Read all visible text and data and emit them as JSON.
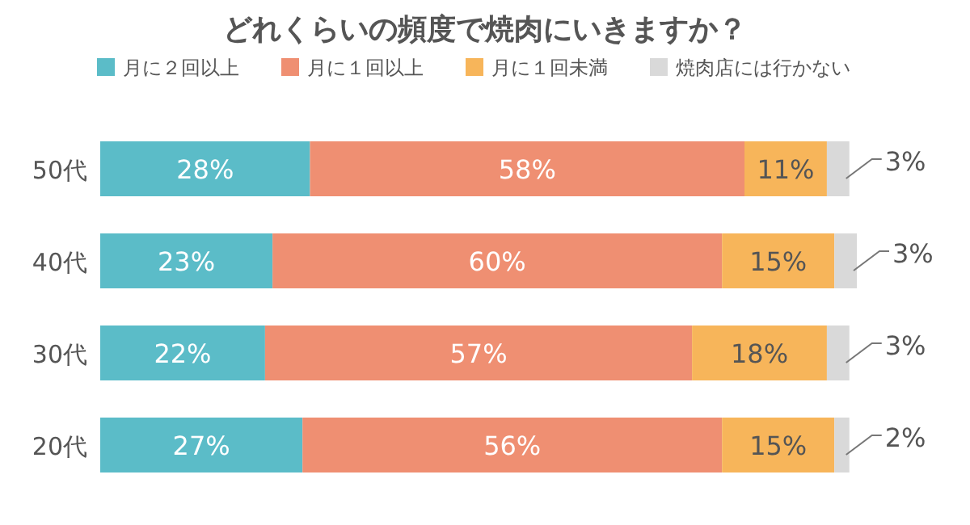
{
  "chart_data": {
    "type": "bar",
    "orientation": "horizontal",
    "stacked": true,
    "title": "どれくらいの頻度で焼肉にいきますか？",
    "categories": [
      "50代",
      "40代",
      "30代",
      "20代"
    ],
    "series": [
      {
        "name": "月に２回以上",
        "color": "#5bbcc8",
        "values": [
          28,
          23,
          22,
          27
        ],
        "value_labels": [
          "28%",
          "23%",
          "22%",
          "27%"
        ]
      },
      {
        "name": "月に１回以上",
        "color": "#ef8f72",
        "values": [
          58,
          60,
          57,
          56
        ],
        "value_labels": [
          "58%",
          "60%",
          "57%",
          "56%"
        ]
      },
      {
        "name": "月に１回未満",
        "color": "#f7b55a",
        "values": [
          11,
          15,
          18,
          15
        ],
        "value_labels": [
          "11%",
          "15%",
          "18%",
          "15%"
        ]
      },
      {
        "name": "焼肉店には行かない",
        "color": "#d9d9d9",
        "values": [
          3,
          3,
          3,
          2
        ],
        "value_labels": [
          "3%",
          "3%",
          "3%",
          "2%"
        ]
      }
    ],
    "legend": "top"
  }
}
